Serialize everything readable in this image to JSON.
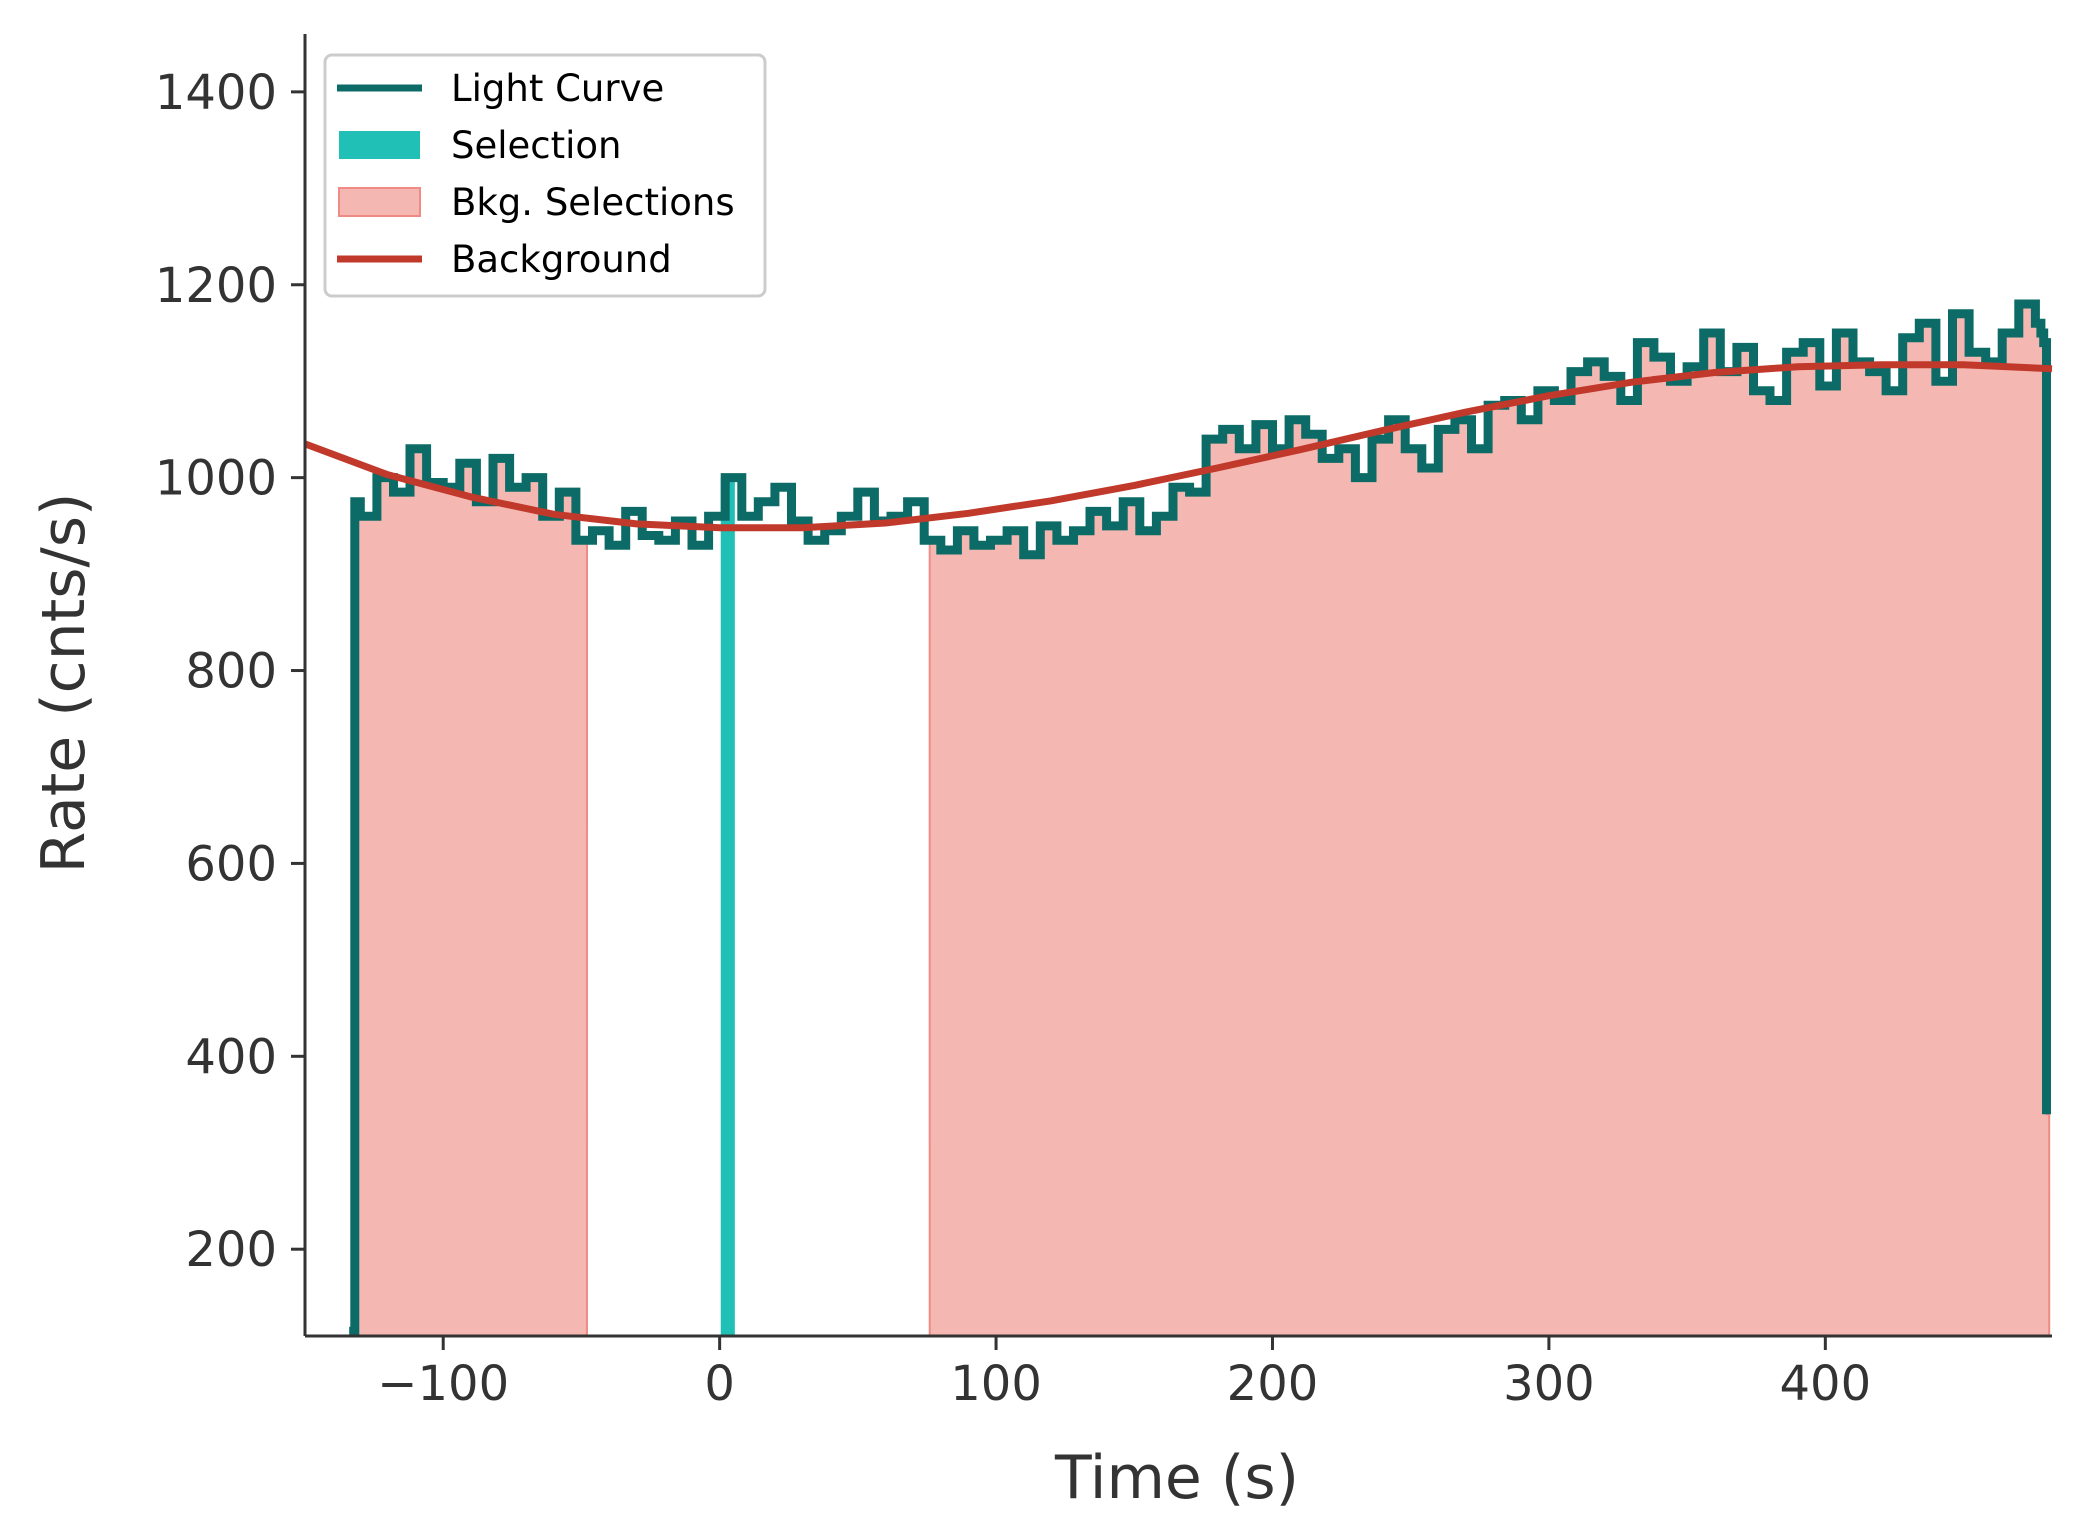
{
  "chart_data": {
    "type": "line",
    "xlabel": "Time (s)",
    "ylabel": "Rate (cnts/s)",
    "xlim": [
      -150,
      482
    ],
    "ylim": [
      110,
      1460
    ],
    "x_ticks": [
      -100,
      0,
      100,
      200,
      300,
      400
    ],
    "x_tick_labels": [
      "−100",
      "0",
      "100",
      "200",
      "300",
      "400"
    ],
    "y_ticks": [
      200,
      400,
      600,
      800,
      1000,
      1200,
      1400
    ],
    "y_tick_labels": [
      "200",
      "400",
      "600",
      "800",
      "1000",
      "1200",
      "1400"
    ],
    "grid": false,
    "legend_position": "top-left",
    "colors": {
      "light_curve": "#0c6b66",
      "selection": "#20c0b6",
      "bkg_selection_fill": "#f5b7b1",
      "bkg_selection_edge": "#ef8b84",
      "background": "#c0392b",
      "axis": "#333333"
    },
    "legend": [
      {
        "name": "Light Curve",
        "kind": "line",
        "color_key": "light_curve"
      },
      {
        "name": "Selection",
        "kind": "patch",
        "color_key": "selection"
      },
      {
        "name": "Bkg. Selections",
        "kind": "patch",
        "color_key": "bkg_selection_fill"
      },
      {
        "name": "Background",
        "kind": "line",
        "color_key": "background"
      }
    ],
    "selection": {
      "range": [
        0.4,
        5.5
      ]
    },
    "bkg_selections": [
      {
        "range": [
          -131,
          -48
        ]
      },
      {
        "range": [
          76,
          481
        ]
      }
    ],
    "light_curve": {
      "name": "Light Curve",
      "x": [
        -134,
        -132,
        -130,
        -124,
        -118,
        -112,
        -106,
        -100,
        -94,
        -88,
        -82,
        -76,
        -70,
        -64,
        -58,
        -52,
        -46,
        -40,
        -34,
        -28,
        -22,
        -16,
        -10,
        -4,
        2,
        8,
        14,
        20,
        26,
        32,
        38,
        44,
        50,
        56,
        62,
        68,
        74,
        80,
        86,
        92,
        98,
        104,
        110,
        116,
        122,
        128,
        134,
        140,
        146,
        152,
        158,
        164,
        170,
        176,
        182,
        188,
        194,
        200,
        206,
        212,
        218,
        224,
        230,
        236,
        242,
        248,
        254,
        260,
        266,
        272,
        278,
        284,
        290,
        296,
        302,
        308,
        314,
        320,
        326,
        332,
        338,
        344,
        350,
        356,
        362,
        368,
        374,
        380,
        386,
        392,
        398,
        404,
        410,
        416,
        422,
        428,
        434,
        440,
        446,
        452,
        458,
        464,
        470,
        476,
        478,
        479,
        480
      ],
      "y": [
        115,
        975,
        960,
        1000,
        985,
        1030,
        995,
        990,
        1015,
        975,
        1020,
        990,
        1000,
        960,
        985,
        935,
        945,
        930,
        965,
        940,
        935,
        955,
        930,
        960,
        1000,
        960,
        975,
        990,
        955,
        935,
        945,
        960,
        985,
        955,
        960,
        975,
        935,
        925,
        945,
        930,
        935,
        945,
        920,
        950,
        935,
        945,
        965,
        950,
        975,
        945,
        960,
        990,
        985,
        1040,
        1050,
        1030,
        1055,
        1030,
        1060,
        1045,
        1020,
        1030,
        1000,
        1040,
        1060,
        1030,
        1010,
        1050,
        1060,
        1030,
        1075,
        1080,
        1060,
        1090,
        1080,
        1110,
        1120,
        1105,
        1080,
        1140,
        1125,
        1100,
        1115,
        1150,
        1110,
        1135,
        1090,
        1080,
        1130,
        1140,
        1095,
        1150,
        1120,
        1110,
        1090,
        1145,
        1160,
        1100,
        1170,
        1130,
        1120,
        1150,
        1180,
        1160,
        1150,
        1140,
        340
      ]
    },
    "background_model": {
      "name": "Background",
      "x": [
        -150,
        -120,
        -90,
        -60,
        -30,
        0,
        30,
        60,
        90,
        120,
        150,
        180,
        210,
        240,
        270,
        300,
        330,
        360,
        390,
        420,
        450,
        482
      ],
      "y": [
        1035,
        1003,
        980,
        962,
        952,
        948,
        948,
        953,
        963,
        976,
        992,
        1010,
        1029,
        1049,
        1068,
        1085,
        1099,
        1109,
        1115,
        1117,
        1117,
        1113
      ]
    }
  }
}
